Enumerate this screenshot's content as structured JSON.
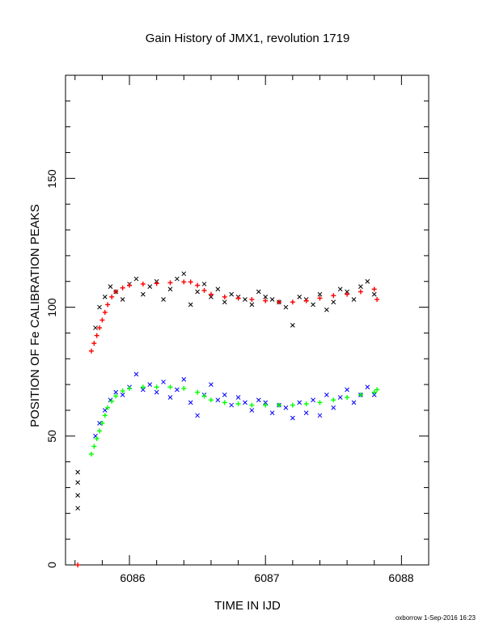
{
  "chart_data": {
    "type": "scatter",
    "title": "Gain History of JMX1, revolution 1719",
    "xlabel": "TIME IN IJD",
    "ylabel": "POSITION OF Fe CALIBRATION PEAKS",
    "xlim": [
      6085.53,
      6088.2
    ],
    "ylim": [
      0,
      190
    ],
    "x_ticks": [
      "6086",
      "6087",
      "6088"
    ],
    "y_ticks": [
      "0",
      "50",
      "100",
      "150"
    ],
    "grid": false,
    "legend": "none",
    "footer": "oxborrow  1-Sep-2016 16:23",
    "colors": {
      "peak1_points": "#000000",
      "peak1_fit": "#ff0000",
      "peak2_points": "#0000ff",
      "peak2_fit": "#00ff00"
    },
    "series": [
      {
        "marker": "x",
        "color": "#000000",
        "x": [
          6085.62,
          6085.62,
          6085.62,
          6085.62,
          6085.75,
          6085.78,
          6085.82,
          6085.86,
          6085.9,
          6085.95,
          6086.0,
          6086.05,
          6086.1,
          6086.15,
          6086.2,
          6086.25,
          6086.3,
          6086.35,
          6086.4,
          6086.45,
          6086.5,
          6086.55,
          6086.6,
          6086.65,
          6086.7,
          6086.75,
          6086.8,
          6086.85,
          6086.9,
          6086.95,
          6087.0,
          6087.05,
          6087.1,
          6087.15,
          6087.2,
          6087.25,
          6087.3,
          6087.35,
          6087.4,
          6087.45,
          6087.5,
          6087.55,
          6087.6,
          6087.65,
          6087.7,
          6087.75,
          6087.8
        ],
        "y": [
          36,
          32,
          27,
          22,
          92,
          100,
          104,
          108,
          106,
          103,
          109,
          111,
          105,
          108,
          110,
          103,
          107,
          111,
          113,
          101,
          106,
          109,
          104,
          107,
          102,
          105,
          104,
          103,
          101,
          106,
          104,
          103,
          102,
          100,
          93,
          104,
          103,
          101,
          105,
          99,
          102,
          107,
          106,
          103,
          108,
          110,
          105
        ]
      },
      {
        "marker": "+",
        "color": "#ff0000",
        "x": [
          6085.62,
          6085.72,
          6085.74,
          6085.76,
          6085.78,
          6085.8,
          6085.82,
          6085.84,
          6085.87,
          6085.9,
          6085.95,
          6086.0,
          6086.1,
          6086.2,
          6086.3,
          6086.4,
          6086.45,
          6086.5,
          6086.55,
          6086.6,
          6086.7,
          6086.8,
          6086.9,
          6087.0,
          6087.1,
          6087.2,
          6087.3,
          6087.4,
          6087.5,
          6087.6,
          6087.7,
          6087.8,
          6087.82
        ],
        "y": [
          0,
          83,
          86,
          89,
          92,
          95,
          98,
          101,
          104,
          106,
          107.5,
          108.5,
          109,
          109.2,
          109.5,
          109.8,
          109.8,
          108.5,
          106.5,
          105,
          104,
          103.5,
          103,
          102.5,
          102,
          102,
          102.5,
          103.5,
          104.5,
          105,
          106,
          107,
          103
        ]
      },
      {
        "marker": "x",
        "color": "#0000ff",
        "x": [
          6085.75,
          6085.78,
          6085.82,
          6085.86,
          6085.9,
          6085.95,
          6086.0,
          6086.05,
          6086.1,
          6086.15,
          6086.2,
          6086.25,
          6086.3,
          6086.35,
          6086.4,
          6086.45,
          6086.5,
          6086.55,
          6086.6,
          6086.65,
          6086.7,
          6086.75,
          6086.8,
          6086.85,
          6086.9,
          6086.95,
          6087.0,
          6087.05,
          6087.1,
          6087.15,
          6087.2,
          6087.25,
          6087.3,
          6087.35,
          6087.4,
          6087.45,
          6087.5,
          6087.55,
          6087.6,
          6087.65,
          6087.7,
          6087.75,
          6087.8
        ],
        "y": [
          50,
          55,
          60,
          64,
          67,
          66,
          69,
          74,
          68,
          70,
          67,
          71,
          65,
          68,
          72,
          63,
          58,
          66,
          70,
          64,
          66,
          62,
          65,
          63,
          60,
          64,
          63,
          59,
          62,
          61,
          57,
          63,
          59,
          64,
          58,
          66,
          61,
          65,
          68,
          63,
          66,
          69,
          66
        ]
      },
      {
        "marker": "+",
        "color": "#00ff00",
        "x": [
          6085.72,
          6085.74,
          6085.76,
          6085.78,
          6085.8,
          6085.82,
          6085.84,
          6085.87,
          6085.9,
          6085.95,
          6086.0,
          6086.1,
          6086.2,
          6086.3,
          6086.4,
          6086.5,
          6086.55,
          6086.6,
          6086.7,
          6086.8,
          6086.9,
          6087.0,
          6087.1,
          6087.2,
          6087.3,
          6087.4,
          6087.5,
          6087.6,
          6087.7,
          6087.8,
          6087.82
        ],
        "y": [
          43,
          46,
          49,
          52,
          55,
          58,
          61,
          63.5,
          65.5,
          67.5,
          68.5,
          69,
          69,
          69,
          68.5,
          67,
          65.5,
          64,
          63,
          62.5,
          62,
          62,
          62,
          62,
          62.5,
          63,
          64,
          65,
          66,
          67,
          68
        ]
      }
    ]
  }
}
